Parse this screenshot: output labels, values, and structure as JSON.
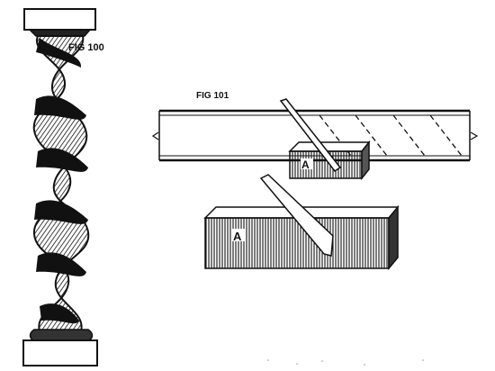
{
  "figures": {
    "fig100": {
      "label": "FIG 100"
    },
    "fig101": {
      "label": "FIG 101"
    }
  },
  "letters": {
    "small_block": "A",
    "large_block": "A"
  },
  "colors": {
    "ink": "#111111",
    "paper": "#ffffff"
  }
}
